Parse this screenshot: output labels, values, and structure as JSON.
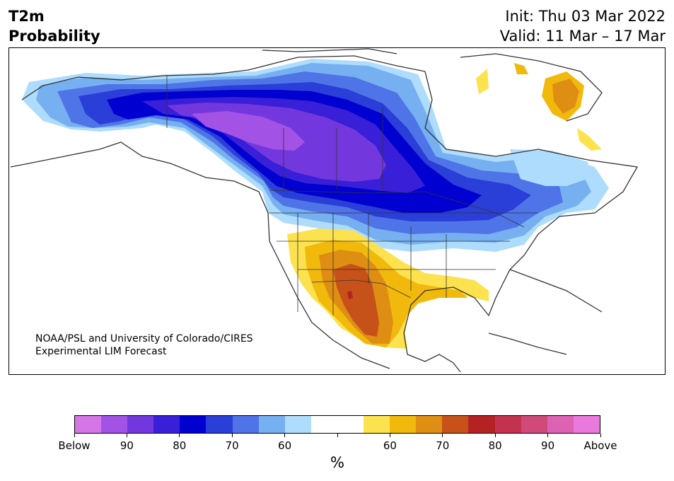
{
  "title": {
    "line1": "T2m",
    "line2": "Probability"
  },
  "init": {
    "line1": "Init: Thu 03 Mar 2022",
    "line2": "Valid: 11 Mar – 17 Mar"
  },
  "credit": {
    "line1": "NOAA/PSL and University of Colorado/CIRES",
    "line2": "Experimental LIM Forecast"
  },
  "colorbar": {
    "units": "%",
    "colors": [
      "#d576e6",
      "#a352e6",
      "#7338dd",
      "#3a1fd8",
      "#0000d0",
      "#2a3ed8",
      "#4f74e8",
      "#76b0f0",
      "#aedcfc",
      "#ffffff",
      "#ffffff",
      "#fde24f",
      "#f1b90c",
      "#df8e14",
      "#c65219",
      "#b42224",
      "#c33350",
      "#cf4a78",
      "#dc62b4",
      "#ea79de"
    ],
    "tick_labels": [
      "Below",
      "90",
      "80",
      "70",
      "60",
      "",
      "60",
      "70",
      "80",
      "90",
      "Above"
    ]
  },
  "regions": {
    "below": [
      "Alaska",
      "western and central Canada",
      "northern Rockies",
      "northern Plains",
      "Great Lakes",
      "Quebec and Labrador",
      "Northeast US"
    ],
    "above": [
      "Southwest US",
      "northern Mexico",
      "Texas",
      "Gulf Coast",
      "Greenland coast"
    ]
  }
}
